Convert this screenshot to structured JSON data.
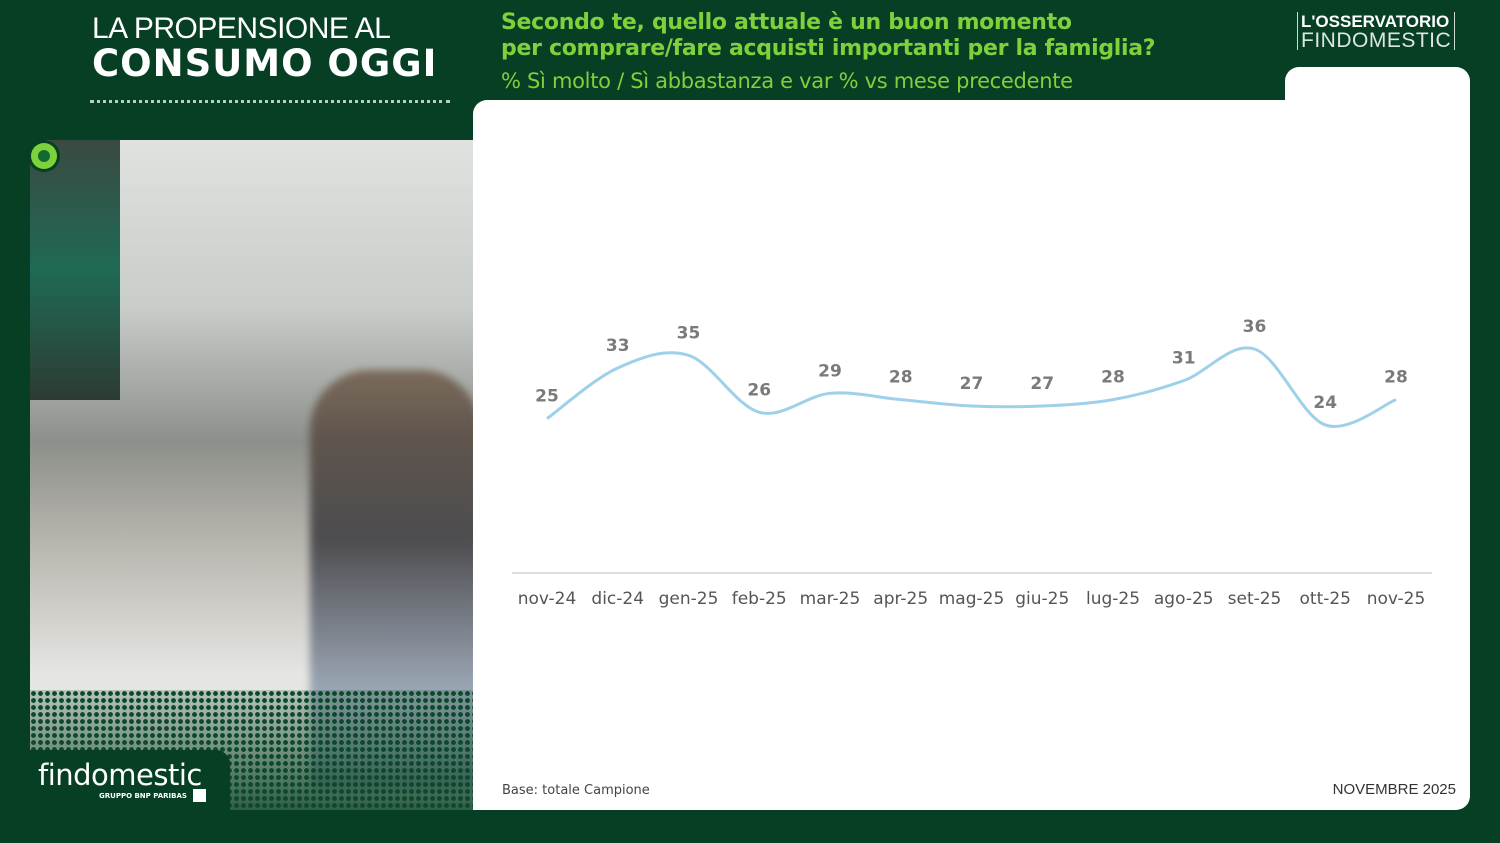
{
  "header": {
    "title_line1": "LA PROPENSIONE AL",
    "title_line2": "CONSUMO OGGI"
  },
  "question": {
    "line1": "Secondo te, quello attuale è un buon momento",
    "line2": "per comprare/fare acquisti importanti per la famiglia?",
    "subtitle": "% Sì molto / Sì abbastanza e var % vs mese precedente"
  },
  "observatory": {
    "line1": "L'OSSERVATORIO",
    "line2": "FINDOMESTIC"
  },
  "brand": {
    "name": "findomestic",
    "group": "GRUPPO BNP PARIBAS"
  },
  "footer": {
    "base": "Base: totale Campione",
    "date": "NOVEMBRE 2025"
  },
  "colors": {
    "background": "#063f24",
    "accent": "#7fd13b",
    "line": "#9fd0ea"
  },
  "chart_data": {
    "type": "line",
    "categories": [
      "nov-24",
      "dic-24",
      "gen-25",
      "feb-25",
      "mar-25",
      "apr-25",
      "mag-25",
      "giu-25",
      "lug-25",
      "ago-25",
      "set-25",
      "ott-25",
      "nov-25"
    ],
    "values": [
      25,
      33,
      35,
      26,
      29,
      28,
      27,
      27,
      28,
      31,
      36,
      24,
      28
    ],
    "data_labels": true,
    "grid": false,
    "smooth": true
  }
}
